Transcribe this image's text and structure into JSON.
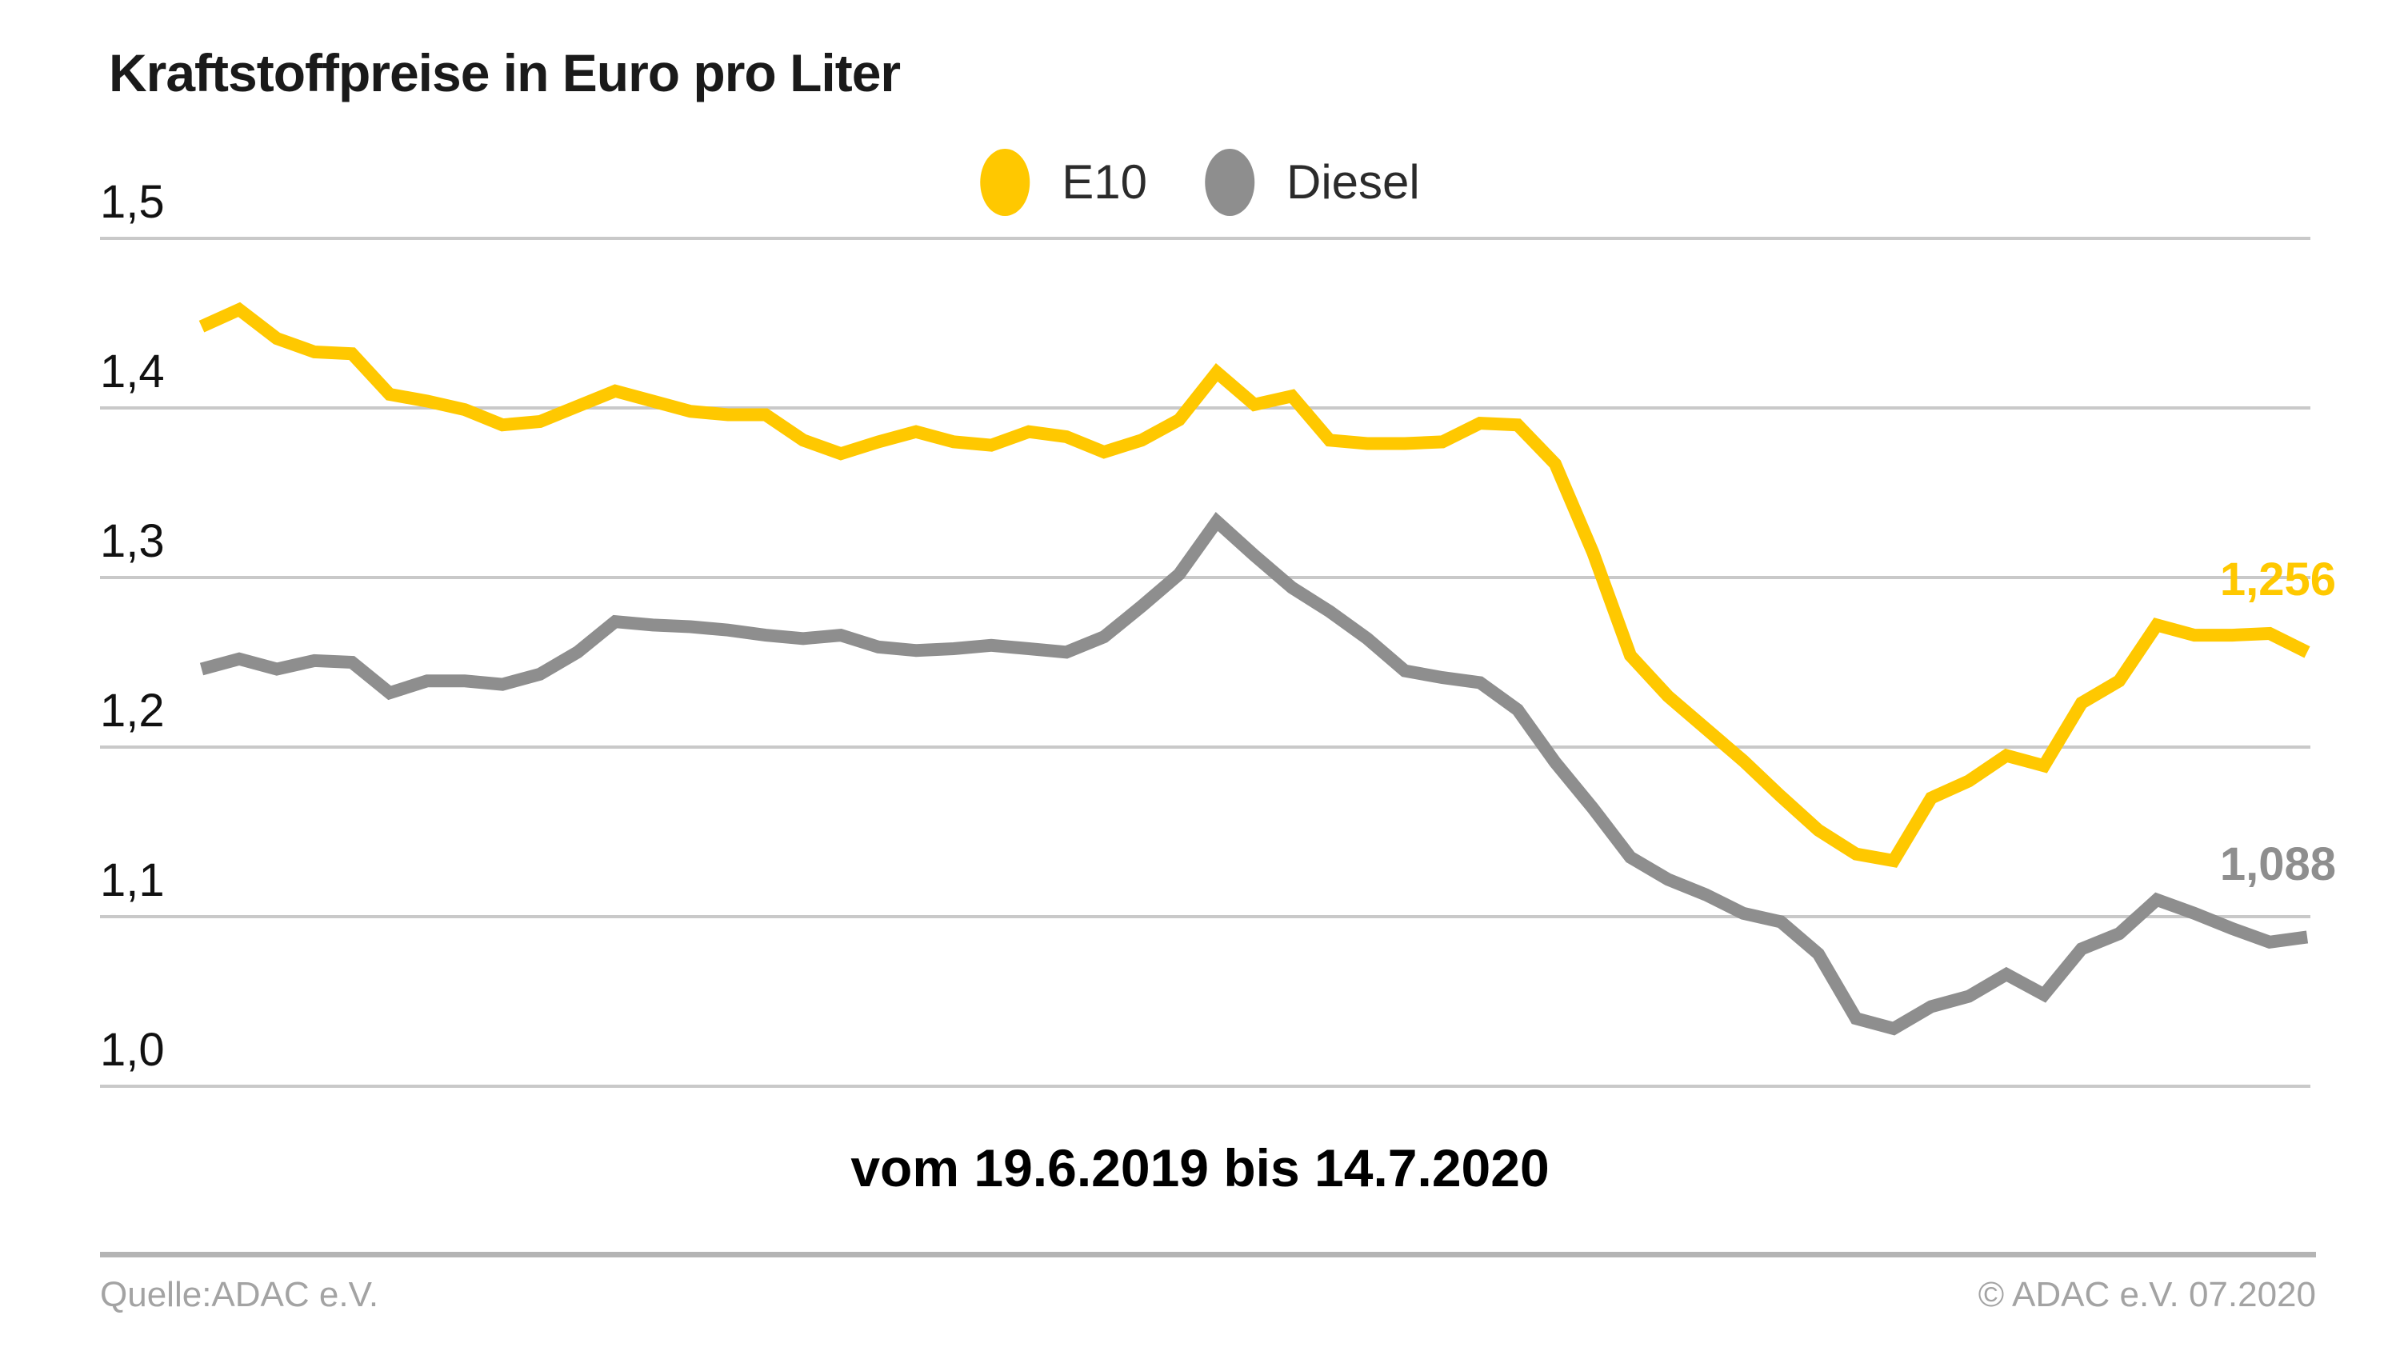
{
  "title": "Kraftstoffpreise in Euro pro Liter",
  "legend": {
    "items": [
      {
        "label": "E10",
        "color": "#FFC800"
      },
      {
        "label": "Diesel",
        "color": "#8E8E8E"
      }
    ]
  },
  "footer": {
    "source": "Quelle:ADAC e.V.",
    "copyright": "© ADAC e.V. 07.2020"
  },
  "chart_data": {
    "type": "line",
    "title": "Kraftstoffpreise in Euro pro Liter",
    "xlabel": "vom 19.6.2019 bis 14.7.2020",
    "ylabel": "Euro pro Liter",
    "ylim": [
      1.0,
      1.5
    ],
    "yticks": [
      1.5,
      1.4,
      1.3,
      1.2,
      1.1,
      1.0
    ],
    "ytick_labels": [
      "1,5",
      "1,4",
      "1,3",
      "1,2",
      "1,1",
      "1,0"
    ],
    "grid": "horizontal",
    "legend_position": "top-center",
    "x_start": "19.6.2019",
    "x_end": "14.7.2020",
    "series": [
      {
        "name": "E10",
        "color": "#FFC800",
        "end_label": "1,256",
        "end_value": 1.256,
        "values": [
          1.448,
          1.458,
          1.441,
          1.433,
          1.432,
          1.408,
          1.404,
          1.399,
          1.39,
          1.392,
          1.401,
          1.41,
          1.404,
          1.398,
          1.396,
          1.396,
          1.381,
          1.373,
          1.38,
          1.386,
          1.38,
          1.378,
          1.386,
          1.383,
          1.374,
          1.381,
          1.393,
          1.421,
          1.402,
          1.407,
          1.381,
          1.379,
          1.379,
          1.38,
          1.391,
          1.39,
          1.367,
          1.315,
          1.254,
          1.23,
          1.211,
          1.192,
          1.171,
          1.151,
          1.137,
          1.133,
          1.17,
          1.18,
          1.195,
          1.189,
          1.226,
          1.239,
          1.272,
          1.266,
          1.266,
          1.267,
          1.256
        ]
      },
      {
        "name": "Diesel",
        "color": "#8E8E8E",
        "end_label": "1,088",
        "end_value": 1.088,
        "values": [
          1.246,
          1.252,
          1.246,
          1.251,
          1.25,
          1.232,
          1.239,
          1.239,
          1.237,
          1.243,
          1.256,
          1.274,
          1.272,
          1.271,
          1.269,
          1.266,
          1.264,
          1.266,
          1.259,
          1.257,
          1.258,
          1.26,
          1.258,
          1.256,
          1.265,
          1.283,
          1.302,
          1.333,
          1.313,
          1.294,
          1.28,
          1.264,
          1.245,
          1.241,
          1.238,
          1.222,
          1.191,
          1.164,
          1.135,
          1.122,
          1.113,
          1.102,
          1.097,
          1.078,
          1.04,
          1.034,
          1.047,
          1.053,
          1.066,
          1.054,
          1.081,
          1.09,
          1.11,
          1.102,
          1.093,
          1.085,
          1.088
        ]
      }
    ]
  }
}
